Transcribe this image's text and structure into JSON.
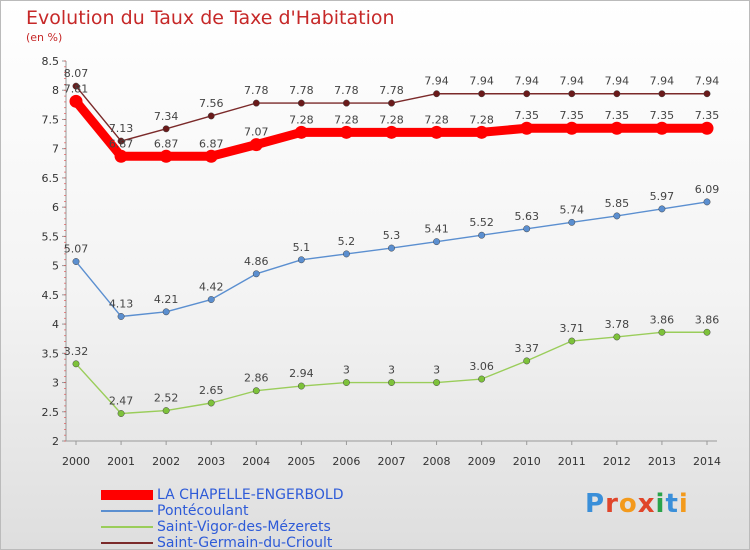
{
  "title": "Evolution du Taux de Taxe d'Habitation",
  "subtitle": "(en %)",
  "logo": [
    "P",
    "r",
    "o",
    "x",
    "i",
    "t",
    "i"
  ],
  "chart_data": {
    "type": "line",
    "x": [
      "2000",
      "2001",
      "2002",
      "2003",
      "2004",
      "2005",
      "2006",
      "2007",
      "2008",
      "2009",
      "2010",
      "2011",
      "2012",
      "2013",
      "2014"
    ],
    "ylim": [
      2,
      8.5
    ],
    "yticks": [
      "2",
      "2.5",
      "3",
      "3.5",
      "4",
      "4.5",
      "5",
      "5.5",
      "6",
      "6.5",
      "7",
      "7.5",
      "8",
      "8.5"
    ],
    "grid": false,
    "legend_position": "bottom-left",
    "series": [
      {
        "name": "Saint-Germain-du-Crioult",
        "color": "#7b2a2a",
        "marker": "#6a1a1a",
        "values": [
          8.07,
          7.13,
          7.34,
          7.56,
          7.78,
          7.78,
          7.78,
          7.78,
          7.94,
          7.94,
          7.94,
          7.94,
          7.94,
          7.94,
          7.94
        ]
      },
      {
        "name": "LA CHAPELLE-ENGERBOLD",
        "color": "#ff0000",
        "marker": "#ff0000",
        "thick": true,
        "values": [
          7.81,
          6.87,
          6.87,
          6.87,
          7.07,
          7.28,
          7.28,
          7.28,
          7.28,
          7.28,
          7.35,
          7.35,
          7.35,
          7.35,
          7.35
        ]
      },
      {
        "name": "Pontécoulant",
        "color": "#5b8fd0",
        "marker": "#5b8fd0",
        "values": [
          5.07,
          4.13,
          4.21,
          4.42,
          4.86,
          5.1,
          5.2,
          5.3,
          5.41,
          5.52,
          5.63,
          5.74,
          5.85,
          5.97,
          6.09
        ]
      },
      {
        "name": "Saint-Vigor-des-Mézerets",
        "color": "#9acd5a",
        "marker": "#7dc23a",
        "values": [
          3.32,
          2.47,
          2.52,
          2.65,
          2.86,
          2.94,
          3,
          3,
          3,
          3.06,
          3.37,
          3.71,
          3.78,
          3.86,
          3.86
        ]
      }
    ],
    "legend_order": [
      "LA CHAPELLE-ENGERBOLD",
      "Pontécoulant",
      "Saint-Vigor-des-Mézerets",
      "Saint-Germain-du-Crioult"
    ]
  }
}
